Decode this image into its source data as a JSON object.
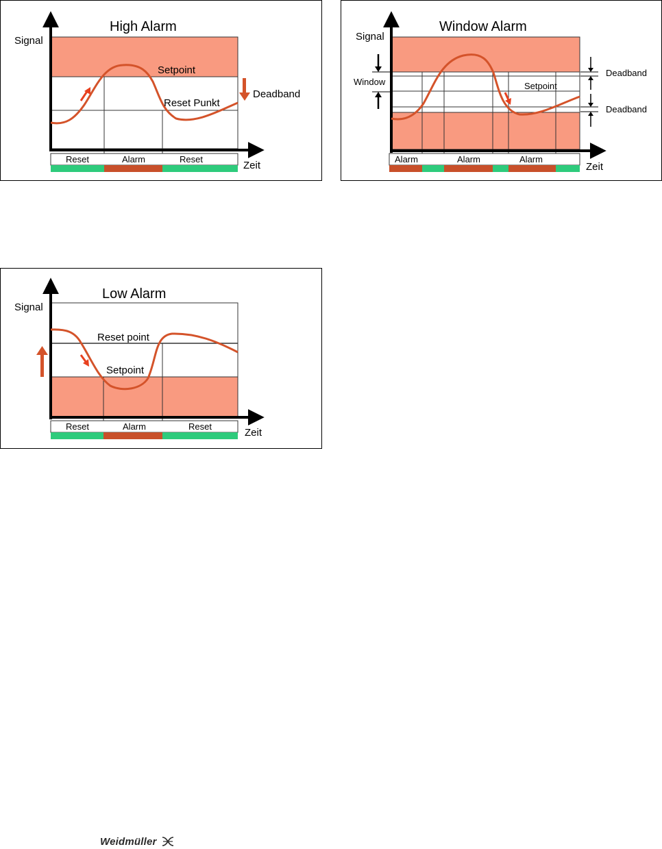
{
  "colors": {
    "alarm_zone": "#f99a80",
    "signal_curve": "#d4532a",
    "alarm_bar": "#c8502a",
    "reset_bar": "#2ecb7c",
    "hint_arrow": "#e8401e"
  },
  "high_alarm": {
    "title": "High Alarm",
    "y_label": "Signal",
    "x_label": "Zeit",
    "setpoint_label": "Setpoint",
    "reset_label": "Reset Punkt",
    "deadband_label": "Deadband",
    "states": [
      "Reset",
      "Alarm",
      "Reset"
    ]
  },
  "window_alarm": {
    "title": "Window Alarm",
    "y_label": "Signal",
    "x_label": "Zeit",
    "window_label": "Window",
    "setpoint_label": "Setpoint",
    "deadband_upper_label": "Deadband",
    "deadband_lower_label": "Deadband",
    "states": [
      "Alarm",
      "",
      "Alarm",
      "",
      "Alarm",
      ""
    ]
  },
  "low_alarm": {
    "title": "Low Alarm",
    "y_label": "Signal",
    "x_label": "Zeit",
    "reset_label": "Reset point",
    "setpoint_label": "Setpoint",
    "states": [
      "Reset",
      "Alarm",
      "Reset"
    ]
  },
  "footer": {
    "logo_text": "Weidmüller"
  }
}
